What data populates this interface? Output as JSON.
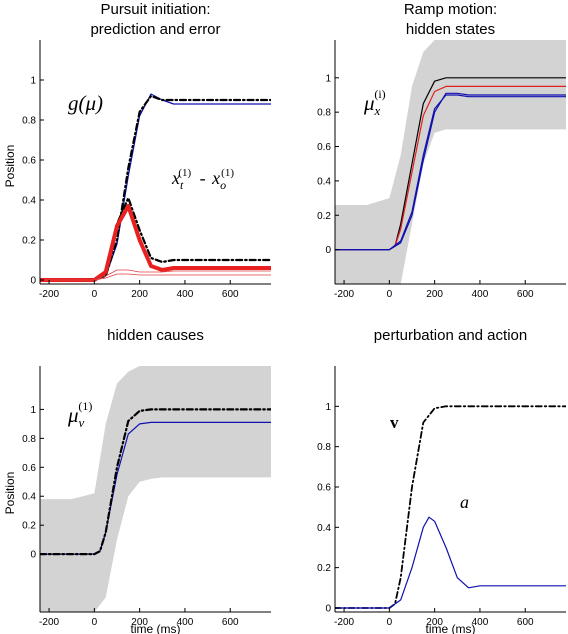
{
  "chart_data": [
    {
      "type": "line",
      "title": "Pursuit initiation:\nprediction and error",
      "ylabel": "Position",
      "xlabel": "",
      "xlim": [
        -240,
        780
      ],
      "ylim": [
        -0.02,
        1.2
      ],
      "xticks": [
        -200,
        0,
        200,
        400,
        600
      ],
      "yticks": [
        0,
        0.2,
        0.4,
        0.6,
        0.8,
        1
      ],
      "annotations": [
        {
          "text": "g(μ)",
          "kind": "g_mu"
        },
        {
          "text": "x_t^(1) - x_o^(1)",
          "kind": "xt_xo"
        }
      ],
      "series": [
        {
          "color": "#1010b0",
          "style": "solid",
          "width": 1.2,
          "x": [
            -240,
            0,
            50,
            100,
            150,
            200,
            250,
            300,
            350,
            400,
            500,
            600,
            780
          ],
          "y": [
            0,
            0,
            0.02,
            0.18,
            0.52,
            0.82,
            0.93,
            0.9,
            0.88,
            0.88,
            0.88,
            0.88,
            0.88
          ]
        },
        {
          "color": "#000000",
          "style": "dashdot",
          "width": 2.2,
          "x": [
            -240,
            0,
            50,
            100,
            150,
            200,
            250,
            300,
            350,
            400,
            500,
            600,
            780
          ],
          "y": [
            0,
            0,
            0.02,
            0.2,
            0.56,
            0.84,
            0.92,
            0.9,
            0.9,
            0.9,
            0.9,
            0.9,
            0.9
          ]
        },
        {
          "color": "#000000",
          "style": "dashdot",
          "width": 2.2,
          "x": [
            -240,
            0,
            50,
            100,
            150,
            200,
            250,
            300,
            350,
            400,
            500,
            600,
            780
          ],
          "y": [
            0,
            0,
            0.03,
            0.28,
            0.41,
            0.25,
            0.11,
            0.09,
            0.1,
            0.1,
            0.1,
            0.1,
            0.1
          ]
        },
        {
          "color": "#e82020",
          "style": "solid",
          "width": 4,
          "x": [
            -240,
            0,
            50,
            100,
            150,
            200,
            250,
            300,
            350,
            400,
            500,
            600,
            780
          ],
          "y": [
            0,
            0,
            0.04,
            0.27,
            0.37,
            0.2,
            0.07,
            0.05,
            0.06,
            0.06,
            0.06,
            0.06,
            0.06
          ]
        },
        {
          "color": "#e04040",
          "style": "solid",
          "width": 0.8,
          "x": [
            -240,
            0,
            50,
            100,
            150,
            200,
            250,
            300,
            350,
            400,
            500,
            600,
            780
          ],
          "y": [
            0,
            0,
            0.02,
            0.05,
            0.05,
            0.04,
            0.04,
            0.04,
            0.045,
            0.045,
            0.045,
            0.045,
            0.045
          ]
        },
        {
          "color": "#e04040",
          "style": "solid",
          "width": 0.8,
          "x": [
            -240,
            0,
            50,
            100,
            150,
            200,
            250,
            300,
            350,
            400,
            500,
            600,
            780
          ],
          "y": [
            0,
            0,
            0.01,
            0.03,
            0.03,
            0.025,
            0.025,
            0.025,
            0.025,
            0.025,
            0.025,
            0.025,
            0.025
          ]
        }
      ]
    },
    {
      "type": "line",
      "title": "Ramp motion:\nhidden states",
      "ylabel": "",
      "xlabel": "",
      "xlim": [
        -240,
        780
      ],
      "ylim": [
        -0.2,
        1.22
      ],
      "xticks": [
        -200,
        0,
        200,
        400,
        600
      ],
      "yticks": [
        0,
        0.2,
        0.4,
        0.6,
        0.8,
        1
      ],
      "annotations": [
        {
          "text": "μ_x^(i)",
          "kind": "mu_x"
        }
      ],
      "band": {
        "x": [
          -240,
          -100,
          0,
          50,
          100,
          150,
          200,
          250,
          300,
          350,
          400,
          500,
          600,
          780
        ],
        "lower": [
          -0.25,
          -0.25,
          -0.25,
          -0.2,
          0.15,
          0.5,
          0.68,
          0.7,
          0.7,
          0.7,
          0.7,
          0.7,
          0.7,
          0.7
        ],
        "upper": [
          0.26,
          0.26,
          0.3,
          0.55,
          0.95,
          1.15,
          1.22,
          1.22,
          1.22,
          1.22,
          1.22,
          1.22,
          1.22,
          1.22
        ]
      },
      "series": [
        {
          "color": "#000000",
          "style": "solid",
          "width": 1.2,
          "x": [
            -240,
            0,
            25,
            50,
            100,
            150,
            200,
            250,
            300,
            400,
            500,
            600,
            780
          ],
          "y": [
            0,
            0,
            0.02,
            0.15,
            0.5,
            0.85,
            0.98,
            1,
            1,
            1,
            1,
            1,
            1
          ]
        },
        {
          "color": "#e02020",
          "style": "solid",
          "width": 1.2,
          "x": [
            -240,
            0,
            25,
            50,
            100,
            150,
            200,
            250,
            300,
            400,
            500,
            600,
            780
          ],
          "y": [
            0,
            0,
            0.02,
            0.12,
            0.45,
            0.78,
            0.92,
            0.95,
            0.95,
            0.95,
            0.95,
            0.95,
            0.95
          ]
        },
        {
          "color": "#1010b0",
          "style": "solid",
          "width": 1.2,
          "x": [
            -240,
            0,
            50,
            100,
            150,
            200,
            250,
            300,
            350,
            400,
            500,
            600,
            780
          ],
          "y": [
            0,
            0,
            0.05,
            0.22,
            0.55,
            0.82,
            0.9,
            0.9,
            0.89,
            0.89,
            0.89,
            0.89,
            0.89
          ]
        },
        {
          "color": "#1010b0",
          "style": "solid",
          "width": 1.2,
          "x": [
            -240,
            0,
            50,
            100,
            150,
            200,
            250,
            300,
            350,
            400,
            500,
            600,
            780
          ],
          "y": [
            0,
            0,
            0.04,
            0.2,
            0.52,
            0.8,
            0.91,
            0.91,
            0.9,
            0.9,
            0.9,
            0.9,
            0.9
          ]
        }
      ]
    },
    {
      "type": "line",
      "title": "hidden causes",
      "ylabel": "Position",
      "xlabel": "time (ms)",
      "xlim": [
        -240,
        780
      ],
      "ylim": [
        -0.4,
        1.3
      ],
      "xticks": [
        -200,
        0,
        200,
        400,
        600
      ],
      "yticks": [
        0,
        0.2,
        0.4,
        0.6,
        0.8,
        1
      ],
      "annotations": [
        {
          "text": "μ_v^(1)",
          "kind": "mu_v"
        }
      ],
      "band": {
        "x": [
          -240,
          -100,
          0,
          50,
          100,
          150,
          200,
          250,
          300,
          400,
          500,
          600,
          780
        ],
        "lower": [
          -0.4,
          -0.4,
          -0.4,
          -0.3,
          0.1,
          0.4,
          0.5,
          0.52,
          0.53,
          0.53,
          0.53,
          0.53,
          0.53
        ],
        "upper": [
          0.38,
          0.38,
          0.42,
          0.9,
          1.18,
          1.26,
          1.3,
          1.3,
          1.3,
          1.3,
          1.3,
          1.3,
          1.3
        ]
      },
      "series": [
        {
          "color": "#1010b0",
          "style": "solid",
          "width": 1.2,
          "x": [
            -240,
            0,
            25,
            50,
            100,
            150,
            200,
            250,
            300,
            400,
            500,
            600,
            780
          ],
          "y": [
            0,
            0,
            0.02,
            0.15,
            0.55,
            0.83,
            0.9,
            0.91,
            0.91,
            0.91,
            0.91,
            0.91,
            0.91
          ]
        },
        {
          "color": "#000000",
          "style": "dashdot",
          "width": 2.2,
          "x": [
            -240,
            0,
            25,
            50,
            100,
            150,
            200,
            250,
            300,
            400,
            500,
            600,
            780
          ],
          "y": [
            0,
            0,
            0.02,
            0.15,
            0.6,
            0.92,
            0.99,
            1,
            1,
            1,
            1,
            1,
            1
          ]
        }
      ]
    },
    {
      "type": "line",
      "title": "perturbation and action",
      "ylabel": "",
      "xlabel": "time (ms)",
      "xlim": [
        -240,
        780
      ],
      "ylim": [
        -0.02,
        1.2
      ],
      "xticks": [
        -200,
        0,
        200,
        400,
        600
      ],
      "yticks": [
        0,
        0.2,
        0.4,
        0.6,
        0.8,
        1
      ],
      "annotations": [
        {
          "text": "v",
          "kind": "v"
        },
        {
          "text": "a",
          "kind": "a"
        }
      ],
      "series": [
        {
          "color": "#000000",
          "style": "dashdot",
          "width": 1.8,
          "x": [
            -240,
            0,
            25,
            50,
            100,
            150,
            200,
            250,
            300,
            400,
            500,
            600,
            780
          ],
          "y": [
            0,
            0,
            0.02,
            0.15,
            0.6,
            0.92,
            0.99,
            1,
            1,
            1,
            1,
            1,
            1
          ]
        },
        {
          "color": "#1010b0",
          "style": "solid",
          "width": 1.2,
          "x": [
            -240,
            0,
            50,
            100,
            150,
            175,
            200,
            250,
            300,
            350,
            400,
            500,
            600,
            780
          ],
          "y": [
            0,
            0,
            0.04,
            0.2,
            0.4,
            0.45,
            0.43,
            0.3,
            0.15,
            0.1,
            0.11,
            0.11,
            0.11,
            0.11
          ]
        }
      ]
    }
  ]
}
